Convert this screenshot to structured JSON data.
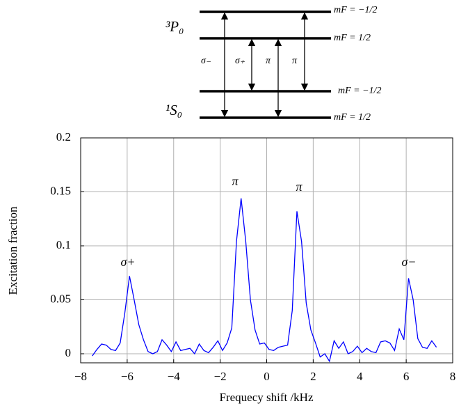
{
  "diagram": {
    "levels": [
      "³P₀",
      "¹S₀"
    ],
    "sublevels": [
      "mF = −1/2",
      "mF = 1/2",
      "mF = −1/2",
      "mF = 1/2"
    ],
    "transitions": [
      "σ₋",
      "σ₊",
      "π",
      "π"
    ]
  },
  "chart_data": {
    "type": "line",
    "xlabel": "Frequecy shift /kHz",
    "ylabel": "Excitation fraction",
    "annotations": [
      "σ+",
      "π",
      "π",
      "σ−"
    ],
    "x": [
      -7.5,
      -7.3,
      -7.1,
      -6.9,
      -6.7,
      -6.5,
      -6.3,
      -6.1,
      -5.9,
      -5.7,
      -5.5,
      -5.3,
      -5.1,
      -4.9,
      -4.7,
      -4.5,
      -4.3,
      -4.1,
      -3.9,
      -3.7,
      -3.5,
      -3.3,
      -3.1,
      -2.9,
      -2.7,
      -2.5,
      -2.3,
      -2.1,
      -1.9,
      -1.7,
      -1.5,
      -1.3,
      -1.1,
      -0.9,
      -0.7,
      -0.5,
      -0.3,
      -0.1,
      0.1,
      0.3,
      0.5,
      0.7,
      0.9,
      1.1,
      1.3,
      1.5,
      1.7,
      1.9,
      2.1,
      2.3,
      2.5,
      2.7,
      2.9,
      3.1,
      3.3,
      3.5,
      3.7,
      3.9,
      4.1,
      4.3,
      4.5,
      4.7,
      4.9,
      5.1,
      5.3,
      5.5,
      5.7,
      5.9,
      6.1,
      6.3,
      6.5,
      6.7,
      6.9,
      7.1,
      7.3
    ],
    "series": [
      {
        "color": "#0000ff",
        "values": [
          -0.002,
          0.004,
          0.009,
          0.008,
          0.004,
          0.003,
          0.01,
          0.038,
          0.072,
          0.05,
          0.027,
          0.013,
          0.002,
          0.0,
          0.002,
          0.013,
          0.008,
          0.002,
          0.011,
          0.003,
          0.004,
          0.005,
          0.0,
          0.009,
          0.003,
          0.001,
          0.006,
          0.012,
          0.003,
          0.01,
          0.024,
          0.104,
          0.144,
          0.104,
          0.05,
          0.022,
          0.009,
          0.01,
          0.004,
          0.003,
          0.006,
          0.007,
          0.008,
          0.04,
          0.132,
          0.104,
          0.047,
          0.022,
          0.01,
          -0.003,
          0.0,
          -0.007,
          0.012,
          0.005,
          0.011,
          0.0,
          0.002,
          0.007,
          0.001,
          0.005,
          0.002,
          0.001,
          0.011,
          0.012,
          0.01,
          0.003,
          0.023,
          0.013,
          0.07,
          0.05,
          0.014,
          0.006,
          0.005,
          0.012,
          0.006
        ]
      }
    ],
    "xlim": [
      -8,
      8
    ],
    "xticks": [
      {
        "value": -8,
        "label": "−8"
      },
      {
        "value": -6,
        "label": "−6"
      },
      {
        "value": -4,
        "label": "−4"
      },
      {
        "value": -2,
        "label": "−2"
      },
      0,
      2,
      4,
      6,
      8
    ],
    "ylim": [
      -0.0084,
      0.2
    ],
    "yticks": [
      0,
      0.05,
      0.1,
      0.15,
      0.2
    ],
    "grid": true
  }
}
